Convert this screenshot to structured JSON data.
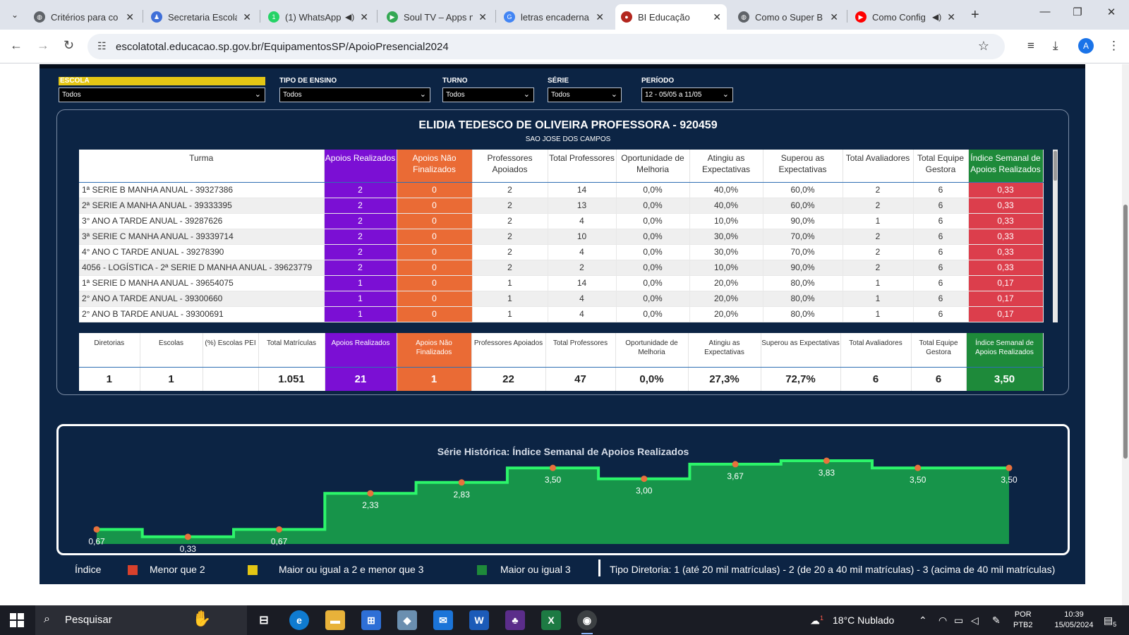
{
  "browser": {
    "tabs": [
      {
        "title": "Critérios para co",
        "color": "#5f6368",
        "icon": "globe-icon",
        "glyph": "◍"
      },
      {
        "title": "Secretaria Escola",
        "color": "#3f6fd8",
        "icon": "person-icon",
        "glyph": "♟"
      },
      {
        "title": "(1) WhatsApp",
        "color": "#25d366",
        "icon": "whatsapp-icon",
        "glyph": "1"
      },
      {
        "title": "Soul TV – Apps n",
        "color": "#34a853",
        "icon": "play-store-icon",
        "glyph": "▶"
      },
      {
        "title": "letras encaderna",
        "color": "#4285f4",
        "icon": "google-icon",
        "glyph": "G"
      },
      {
        "title": "BI Educação",
        "color": "#b3261e",
        "icon": "bi-icon",
        "glyph": "●"
      },
      {
        "title": "Como o Super B",
        "color": "#5f6368",
        "icon": "globe-icon",
        "glyph": "◍"
      },
      {
        "title": "Como Config",
        "color": "#ff0000",
        "icon": "youtube-icon",
        "glyph": "▶"
      }
    ],
    "active_tab": 5,
    "url": "escolatotal.educacao.sp.gov.br/EquipamentosSP/ApoioPresencial2024",
    "profile_initial": "A"
  },
  "filters": [
    {
      "label": "ESCOLA",
      "value": "Todos"
    },
    {
      "label": "TIPO DE ENSINO",
      "value": "Todos"
    },
    {
      "label": "TURNO",
      "value": "Todos"
    },
    {
      "label": "SÉRIE",
      "value": "Todos"
    },
    {
      "label": "PERÍODO",
      "value": "12 - 05/05 a 11/05"
    }
  ],
  "school": {
    "name": "ELIDIA TEDESCO DE OLIVEIRA PROFESSORA - 920459",
    "city": "SAO JOSE DOS CAMPOS"
  },
  "detail_table": {
    "headers": [
      "Turma",
      "Apoios Realizados",
      "Apoios Não Finalizados",
      "Professores Apoiados",
      "Total Professores",
      "Oportunidade de Melhoria",
      "Atingiu as Expectativas",
      "Superou as Expectativas",
      "Total Avaliadores",
      "Total Equipe Gestora",
      "Índice Semanal de Apoios Realizados"
    ],
    "rows": [
      [
        "1ª SERIE B MANHA ANUAL - 39327386",
        "2",
        "0",
        "2",
        "14",
        "0,0%",
        "40,0%",
        "60,0%",
        "2",
        "6",
        "0,33"
      ],
      [
        "2ª SERIE A MANHA ANUAL - 39333395",
        "2",
        "0",
        "2",
        "13",
        "0,0%",
        "40,0%",
        "60,0%",
        "2",
        "6",
        "0,33"
      ],
      [
        "3° ANO A TARDE ANUAL - 39287626",
        "2",
        "0",
        "2",
        "4",
        "0,0%",
        "10,0%",
        "90,0%",
        "1",
        "6",
        "0,33"
      ],
      [
        "3ª SERIE C MANHA ANUAL - 39339714",
        "2",
        "0",
        "2",
        "10",
        "0,0%",
        "30,0%",
        "70,0%",
        "2",
        "6",
        "0,33"
      ],
      [
        "4° ANO C TARDE ANUAL - 39278390",
        "2",
        "0",
        "2",
        "4",
        "0,0%",
        "30,0%",
        "70,0%",
        "2",
        "6",
        "0,33"
      ],
      [
        "4056 - LOGÍSTICA - 2ª SERIE D MANHA ANUAL - 39623779",
        "2",
        "0",
        "2",
        "2",
        "0,0%",
        "10,0%",
        "90,0%",
        "2",
        "6",
        "0,33"
      ],
      [
        "1ª SERIE D MANHA ANUAL - 39654075",
        "1",
        "0",
        "1",
        "14",
        "0,0%",
        "20,0%",
        "80,0%",
        "1",
        "6",
        "0,17"
      ],
      [
        "2° ANO A TARDE ANUAL - 39300660",
        "1",
        "0",
        "1",
        "4",
        "0,0%",
        "20,0%",
        "80,0%",
        "1",
        "6",
        "0,17"
      ],
      [
        "2° ANO B TARDE ANUAL - 39300691",
        "1",
        "0",
        "1",
        "4",
        "0,0%",
        "20,0%",
        "80,0%",
        "1",
        "6",
        "0,17"
      ]
    ]
  },
  "totals_table": {
    "headers": [
      "Diretorias",
      "Escolas",
      "(%) Escolas PEI",
      "Total Matrículas",
      "Apoios Realizados",
      "Apoios Não Finalizados",
      "Professores Apoiados",
      "Total Professores",
      "Oportunidade de Melhoria",
      "Atingiu as Expectativas",
      "Superou as Expectativas",
      "Total Avaliadores",
      "Total Equipe Gestora",
      "Índice Semanal de Apoios Realizados"
    ],
    "values": [
      "1",
      "1",
      "",
      "1.051",
      "21",
      "1",
      "22",
      "47",
      "0,0%",
      "27,3%",
      "72,7%",
      "6",
      "6",
      "3,50"
    ]
  },
  "colors": {
    "apoios_realizados": "#7b0fd4",
    "apoios_nao_finalizados": "#ea6b35",
    "indice_header": "#1e8a3a",
    "indice_low": "#dc3e4c",
    "menor_que_2": "#d9412c",
    "entre_2_e_3": "#e4c614",
    "maior_ou_igual_3": "#1e8a3a",
    "chart_area": "#17944a",
    "chart_line": "#2cf56a",
    "chart_point": "#e8713c"
  },
  "chart_data": {
    "type": "area",
    "title": "Série Histórica: Índice Semanal de Apoios Realizados",
    "step": true,
    "labels": [
      "0,67",
      "0,33",
      "0,67",
      "2,33",
      "2,83",
      "3,50",
      "3,00",
      "3,67",
      "3,83",
      "3,50",
      "3,50"
    ],
    "values": [
      0.67,
      0.33,
      0.67,
      2.33,
      2.83,
      3.5,
      3.0,
      3.67,
      3.83,
      3.5,
      3.5
    ],
    "ylim": [
      0,
      3.83
    ]
  },
  "legend": {
    "title": "Índice",
    "items": [
      "Menor que 2",
      "Maior ou igual a 2 e menor que 3",
      "Maior ou igual 3"
    ],
    "tipo_diretoria": "Tipo Diretoria: 1 (até 20 mil matrículas) - 2 (de 20 a 40 mil matrículas) - 3 (acima de 40 mil matrículas)"
  },
  "taskbar": {
    "search_placeholder": "Pesquisar",
    "weather": "18°C  Nublado",
    "weather_badge": "1",
    "lang_top": "POR",
    "lang_bottom": "PTB2",
    "time": "10:39",
    "date": "15/05/2024",
    "notif_count": "5"
  }
}
